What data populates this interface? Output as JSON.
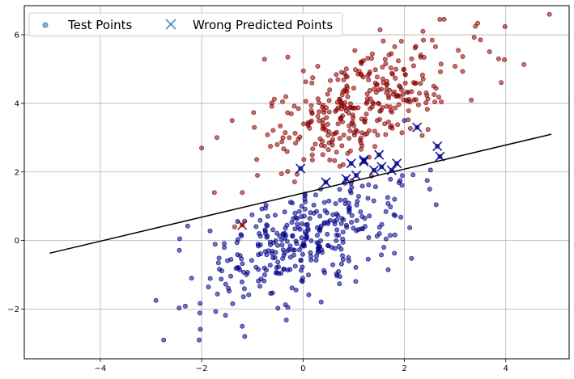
{
  "chart_data": {
    "type": "scatter",
    "xlim": [
      -5.5,
      5.25
    ],
    "ylim": [
      -3.45,
      6.85
    ],
    "xticks": [
      -4,
      -2,
      0,
      2,
      4
    ],
    "yticks": [
      -2,
      0,
      2,
      4,
      6
    ],
    "xtick_labels": [
      "−4",
      "−2",
      "0",
      "2",
      "4"
    ],
    "ytick_labels": [
      "−2",
      "0",
      "2",
      "4",
      "6"
    ],
    "grid": true,
    "legend": {
      "placement": "top-left",
      "entries": [
        "Test Points",
        "Wrong Predicted Points"
      ]
    },
    "colors": {
      "class_0": "#00008b",
      "class_1": "#8b0000",
      "decision_line": "#000000",
      "grid": "#b0b0b0",
      "legend_marker": "#1f77b4"
    },
    "clusters": [
      {
        "class": 1,
        "center": [
          1.2,
          4.0
        ],
        "spread": [
          1.0,
          1.0
        ],
        "correlation": 0.6,
        "count": 340
      },
      {
        "class": 0,
        "center": [
          0.0,
          0.0
        ],
        "spread": [
          1.0,
          1.0
        ],
        "correlation": 0.6,
        "count": 340
      }
    ],
    "outliers": [
      {
        "x": -2.75,
        "y": -2.9,
        "class": 0
      },
      {
        "x": -2.05,
        "y": -2.9,
        "class": 0
      },
      {
        "x": -1.2,
        "y": -2.5,
        "class": 0
      },
      {
        "x": -1.15,
        "y": -2.8,
        "class": 0
      },
      {
        "x": -2.2,
        "y": -1.1,
        "class": 0
      },
      {
        "x": -0.3,
        "y": -1.95,
        "class": 0
      },
      {
        "x": 2.45,
        "y": 1.75,
        "class": 0
      },
      {
        "x": 2.5,
        "y": 1.5,
        "class": 0
      },
      {
        "x": 2.0,
        "y": 3.5,
        "class": 0
      },
      {
        "x": 3.5,
        "y": 5.85,
        "class": 1
      },
      {
        "x": 3.4,
        "y": 6.25,
        "class": 1
      },
      {
        "x": 2.7,
        "y": 6.45,
        "class": 1
      },
      {
        "x": -0.3,
        "y": 5.35,
        "class": 1
      },
      {
        "x": -1.4,
        "y": 3.5,
        "class": 1
      },
      {
        "x": -1.7,
        "y": 3.0,
        "class": 1
      },
      {
        "x": -2.0,
        "y": 2.7,
        "class": 1
      },
      {
        "x": -1.75,
        "y": 1.4,
        "class": 1
      },
      {
        "x": -1.2,
        "y": 1.4,
        "class": 1
      },
      {
        "x": -1.35,
        "y": 0.4,
        "class": 1
      },
      {
        "x": -0.9,
        "y": 1.9,
        "class": 1
      }
    ],
    "misclassified": [
      {
        "x": -1.2,
        "y": 0.45,
        "class": 1
      },
      {
        "x": -0.05,
        "y": 2.1,
        "class": 0
      },
      {
        "x": 0.45,
        "y": 1.7,
        "class": 0
      },
      {
        "x": 0.85,
        "y": 1.8,
        "class": 0
      },
      {
        "x": 0.95,
        "y": 2.25,
        "class": 0
      },
      {
        "x": 1.05,
        "y": 1.9,
        "class": 0
      },
      {
        "x": 1.2,
        "y": 2.3,
        "class": 0
      },
      {
        "x": 1.2,
        "y": 2.35,
        "class": 0
      },
      {
        "x": 1.4,
        "y": 2.05,
        "class": 0
      },
      {
        "x": 1.5,
        "y": 2.5,
        "class": 0
      },
      {
        "x": 1.55,
        "y": 2.15,
        "class": 0
      },
      {
        "x": 1.75,
        "y": 2.05,
        "class": 0
      },
      {
        "x": 1.85,
        "y": 2.25,
        "class": 0
      },
      {
        "x": 2.25,
        "y": 3.3,
        "class": 0
      },
      {
        "x": 2.65,
        "y": 2.75,
        "class": 0
      },
      {
        "x": 2.7,
        "y": 2.45,
        "class": 0
      }
    ],
    "decision_boundary": {
      "x": [
        -5.0,
        4.9
      ],
      "y": [
        -0.37,
        3.1
      ]
    }
  }
}
